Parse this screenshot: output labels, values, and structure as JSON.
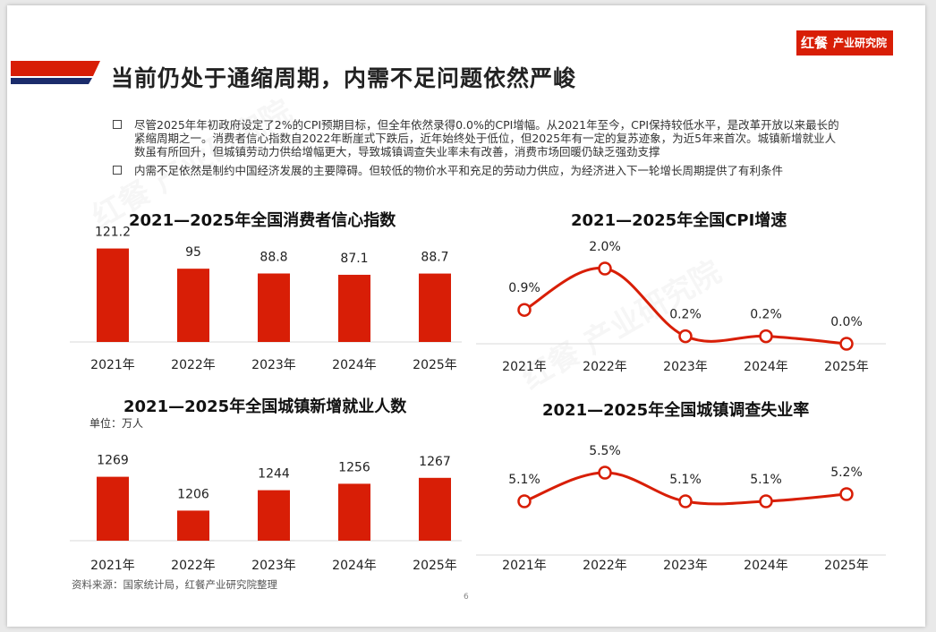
{
  "brand": {
    "mark": "红餐",
    "name": "产业研究院"
  },
  "watermark": "红餐 产业研究院",
  "title": "当前仍处于通缩周期，内需不足问题依然严峻",
  "bullets": [
    "尽管2025年年初政府设定了2%的CPI预期目标，但全年依然录得0.0%的CPI增幅。从2021年至今，CPI保持较低水平，是改革开放以来最长的紧缩周期之一。消费者信心指数自2022年断崖式下跌后，近年始终处于低位，但2025年有一定的复苏迹象，为近5年来首次。城镇新增就业人数虽有所回升，但城镇劳动力供给增幅更大，导致城镇调查失业率未有改善，消费市场回暖仍缺乏强劲支撑",
    "内需不足依然是制约中国经济发展的主要障碍。但较低的物价水平和充足的劳动力供应，为经济进入下一轮增长周期提供了有利条件"
  ],
  "colors": {
    "accent": "#d81e06",
    "navy": "#1b2c6b"
  },
  "unit_label": "单位：万人",
  "source": "资料来源：国家统计局，红餐产业研究院整理",
  "page_number": "6",
  "chart_data": [
    {
      "id": "confidence",
      "type": "bar",
      "title": "2021—2025年全国消费者信心指数",
      "categories": [
        "2021年",
        "2022年",
        "2023年",
        "2024年",
        "2025年"
      ],
      "values": [
        121.2,
        95,
        88.8,
        87.1,
        88.7
      ],
      "labels": [
        "121.2",
        "95",
        "88.8",
        "87.1",
        "88.7"
      ],
      "ylim": [
        0,
        130
      ]
    },
    {
      "id": "cpi",
      "type": "line",
      "title": "2021—2025年全国CPI增速",
      "categories": [
        "2021年",
        "2022年",
        "2023年",
        "2024年",
        "2025年"
      ],
      "values": [
        0.9,
        2.0,
        0.2,
        0.2,
        0.0
      ],
      "labels": [
        "0.9%",
        "2.0%",
        "0.2%",
        "0.2%",
        "0.0%"
      ],
      "ylim": [
        0,
        2.0
      ]
    },
    {
      "id": "employment",
      "type": "bar",
      "title": "2021—2025年全国城镇新增就业人数",
      "categories": [
        "2021年",
        "2022年",
        "2023年",
        "2024年",
        "2025年"
      ],
      "values": [
        1269,
        1206,
        1244,
        1256,
        1267
      ],
      "labels": [
        "1269",
        "1206",
        "1244",
        "1256",
        "1267"
      ],
      "ylim": [
        1150,
        1280
      ]
    },
    {
      "id": "unemployment",
      "type": "line",
      "title": "2021—2025年全国城镇调查失业率",
      "categories": [
        "2021年",
        "2022年",
        "2023年",
        "2024年",
        "2025年"
      ],
      "values": [
        5.1,
        5.5,
        5.1,
        5.1,
        5.2
      ],
      "labels": [
        "5.1%",
        "5.5%",
        "5.1%",
        "5.1%",
        "5.2%"
      ],
      "ylim": [
        5.1,
        5.5
      ]
    }
  ]
}
